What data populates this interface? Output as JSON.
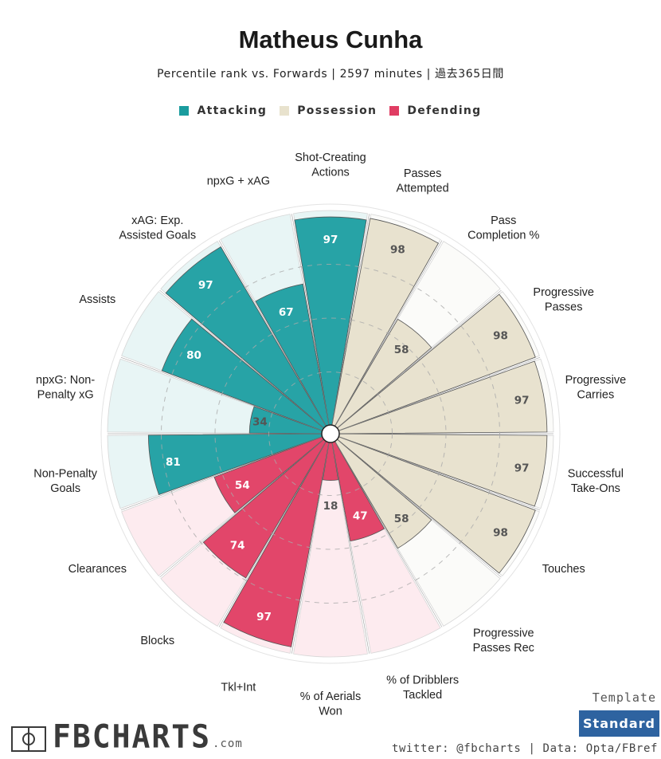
{
  "title": "Matheus Cunha",
  "subtitle": "Percentile rank vs. Forwards | 2597 minutes | 過去365日間",
  "legend": [
    {
      "name": "Attacking",
      "color": "#1a9c9e"
    },
    {
      "name": "Possession",
      "color": "#e8e2cd"
    },
    {
      "name": "Defending",
      "color": "#e03d63"
    }
  ],
  "template": {
    "label": "Template",
    "button": "Standard"
  },
  "footer": "twitter: @fbcharts | Data: Opta/FBref",
  "logo": {
    "text": "FBCHARTS",
    "suffix": ".com"
  },
  "chart_data": {
    "type": "polar-bar",
    "range": [
      0,
      100
    ],
    "categories": [
      {
        "label": [
          "Shot-Creating",
          "Actions"
        ],
        "value": 97,
        "group": "Attacking"
      },
      {
        "label": [
          "Passes",
          "Attempted"
        ],
        "value": 98,
        "group": "Possession"
      },
      {
        "label": [
          "Pass",
          "Completion %"
        ],
        "value": 58,
        "group": "Possession"
      },
      {
        "label": [
          "Progressive",
          "Passes"
        ],
        "value": 98,
        "group": "Possession"
      },
      {
        "label": [
          "Progressive",
          "Carries"
        ],
        "value": 97,
        "group": "Possession"
      },
      {
        "label": [
          "Successful",
          "Take-Ons"
        ],
        "value": 97,
        "group": "Possession"
      },
      {
        "label": [
          "Touches"
        ],
        "value": 98,
        "group": "Possession"
      },
      {
        "label": [
          "Progressive",
          "Passes Rec"
        ],
        "value": 58,
        "group": "Possession"
      },
      {
        "label": [
          "% of Dribblers",
          "Tackled"
        ],
        "value": 47,
        "group": "Defending"
      },
      {
        "label": [
          "% of Aerials",
          "Won"
        ],
        "value": 18,
        "group": "Defending"
      },
      {
        "label": [
          "Tkl+Int"
        ],
        "value": 97,
        "group": "Defending"
      },
      {
        "label": [
          "Blocks"
        ],
        "value": 74,
        "group": "Defending"
      },
      {
        "label": [
          "Clearances"
        ],
        "value": 54,
        "group": "Defending"
      },
      {
        "label": [
          "Non-Penalty",
          "Goals"
        ],
        "value": 81,
        "group": "Attacking"
      },
      {
        "label": [
          "npxG: Non-",
          "Penalty xG"
        ],
        "value": 34,
        "group": "Attacking"
      },
      {
        "label": [
          "Assists"
        ],
        "value": 80,
        "group": "Attacking"
      },
      {
        "label": [
          "xAG: Exp.",
          "Assisted Goals"
        ],
        "value": 97,
        "group": "Attacking"
      },
      {
        "label": [
          "npxG + xAG"
        ],
        "value": 67,
        "group": "Attacking"
      }
    ],
    "group_styles": {
      "Attacking": {
        "fill": "#27a3a6",
        "bg": "#e8f5f5",
        "text": "#ffffff"
      },
      "Possession": {
        "fill": "#e8e2cf",
        "bg": "#fbfbf9",
        "text": "#555555"
      },
      "Defending": {
        "fill": "#e2466a",
        "bg": "#fdebef",
        "text": "#ffffff"
      }
    }
  }
}
